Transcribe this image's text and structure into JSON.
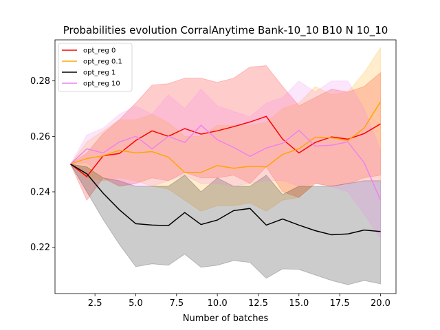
{
  "chart_data": {
    "type": "line",
    "title": "Probabilities evolution CorralAnytime Bank-10_10 B10 N 10_10",
    "xlabel": "Number of batches",
    "ylabel": "",
    "xlim": [
      0.05,
      20.95
    ],
    "ylim": [
      0.2033,
      0.2948
    ],
    "xticks": [
      2.5,
      5.0,
      7.5,
      10.0,
      12.5,
      15.0,
      17.5,
      20.0
    ],
    "xtick_labels": [
      "2.5",
      "5.0",
      "7.5",
      "10.0",
      "12.5",
      "15.0",
      "17.5",
      "20.0"
    ],
    "yticks": [
      0.22,
      0.24,
      0.26,
      0.28
    ],
    "ytick_labels": [
      "0.22",
      "0.24",
      "0.26",
      "0.28"
    ],
    "grid": false,
    "legend_position": "top-left",
    "x": [
      1,
      2,
      3,
      4,
      5,
      6,
      7,
      8,
      9,
      10,
      11,
      12,
      13,
      14,
      15,
      16,
      17,
      18,
      19,
      20
    ],
    "series": [
      {
        "name": "opt_reg 0",
        "color": "#ff0000",
        "values": [
          0.25,
          0.2455,
          0.253,
          0.2538,
          0.2585,
          0.262,
          0.26,
          0.2628,
          0.2608,
          0.262,
          0.2635,
          0.2652,
          0.2672,
          0.259,
          0.254,
          0.2578,
          0.2598,
          0.259,
          0.261,
          0.2645
        ],
        "lower": [
          0.25,
          0.237,
          0.245,
          0.242,
          0.243,
          0.245,
          0.244,
          0.247,
          0.245,
          0.245,
          0.246,
          0.243,
          0.249,
          0.24,
          0.238,
          0.243,
          0.242,
          0.243,
          0.245,
          0.246
        ],
        "upper": [
          0.25,
          0.254,
          0.261,
          0.266,
          0.272,
          0.2785,
          0.279,
          0.281,
          0.281,
          0.2795,
          0.281,
          0.285,
          0.2855,
          0.278,
          0.271,
          0.274,
          0.277,
          0.276,
          0.278,
          0.283
        ]
      },
      {
        "name": "opt_reg 0.1",
        "color": "#ffa500",
        "values": [
          0.25,
          0.252,
          0.253,
          0.255,
          0.254,
          0.2545,
          0.2525,
          0.247,
          0.247,
          0.2495,
          0.2485,
          0.2492,
          0.249,
          0.2535,
          0.2555,
          0.2597,
          0.2595,
          0.2585,
          0.263,
          0.2725
        ],
        "lower": [
          0.25,
          0.245,
          0.244,
          0.245,
          0.244,
          0.242,
          0.241,
          0.237,
          0.233,
          0.235,
          0.235,
          0.236,
          0.233,
          0.237,
          0.238,
          0.243,
          0.242,
          0.243,
          0.244,
          0.244
        ],
        "upper": [
          0.25,
          0.258,
          0.262,
          0.266,
          0.266,
          0.268,
          0.265,
          0.26,
          0.26,
          0.264,
          0.264,
          0.264,
          0.265,
          0.27,
          0.272,
          0.278,
          0.275,
          0.276,
          0.283,
          0.292
        ]
      },
      {
        "name": "opt_reg 1",
        "color": "#000000",
        "values": [
          0.25,
          0.2465,
          0.2395,
          0.2335,
          0.2285,
          0.228,
          0.2278,
          0.2325,
          0.2282,
          0.2298,
          0.2332,
          0.234,
          0.228,
          0.2302,
          0.228,
          0.226,
          0.2245,
          0.2248,
          0.2262,
          0.2257
        ],
        "lower": [
          0.25,
          0.24,
          0.23,
          0.221,
          0.213,
          0.214,
          0.2135,
          0.2175,
          0.2128,
          0.2135,
          0.2152,
          0.2145,
          0.2088,
          0.2122,
          0.212,
          0.21,
          0.208,
          0.2065,
          0.208,
          0.2068
        ],
        "upper": [
          0.25,
          0.249,
          0.245,
          0.244,
          0.242,
          0.242,
          0.242,
          0.246,
          0.24,
          0.245,
          0.242,
          0.242,
          0.246,
          0.239,
          0.242,
          0.242,
          0.242,
          0.243,
          0.244,
          0.244
        ]
      },
      {
        "name": "opt_reg 10",
        "color": "#ee82ee",
        "values": [
          0.25,
          0.2555,
          0.254,
          0.258,
          0.26,
          0.2555,
          0.26,
          0.2578,
          0.264,
          0.2588,
          0.256,
          0.2528,
          0.2558,
          0.2575,
          0.2622,
          0.2565,
          0.2568,
          0.258,
          0.2505,
          0.237
        ],
        "lower": [
          0.25,
          0.2505,
          0.245,
          0.243,
          0.242,
          0.242,
          0.244,
          0.246,
          0.243,
          0.243,
          0.242,
          0.243,
          0.244,
          0.244,
          0.242,
          0.243,
          0.242,
          0.24,
          0.232,
          0.223
        ],
        "upper": [
          0.25,
          0.2605,
          0.263,
          0.268,
          0.271,
          0.268,
          0.275,
          0.27,
          0.277,
          0.271,
          0.269,
          0.267,
          0.272,
          0.274,
          0.28,
          0.276,
          0.28,
          0.28,
          0.27,
          0.255
        ]
      }
    ]
  }
}
